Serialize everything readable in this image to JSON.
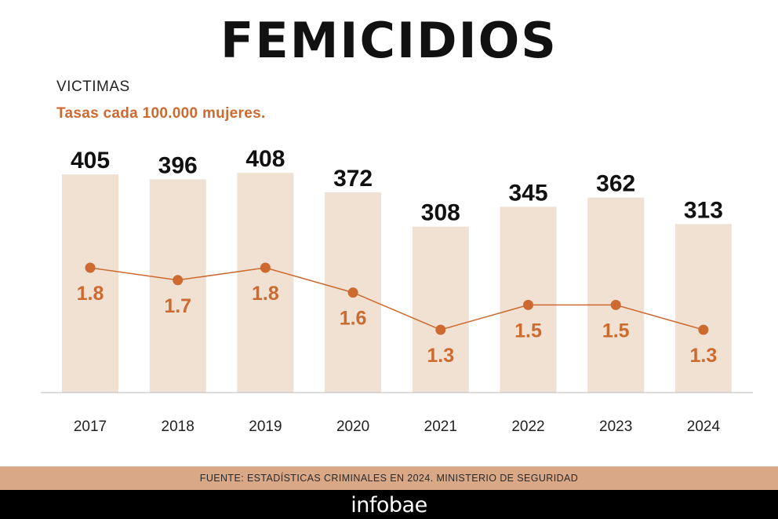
{
  "header": {
    "title": "FEMICIDIOS",
    "subtitle_victims": "VICTIMAS",
    "subtitle_rates": "Tasas cada 100.000 mujeres."
  },
  "chart_data": {
    "type": "bar",
    "categories": [
      "2017",
      "2018",
      "2019",
      "2020",
      "2021",
      "2022",
      "2023",
      "2024"
    ],
    "series": [
      {
        "type": "bar",
        "values": [
          405,
          396,
          408,
          372,
          308,
          345,
          362,
          313
        ]
      },
      {
        "type": "line",
        "values": [
          1.8,
          1.7,
          1.8,
          1.6,
          1.3,
          1.5,
          1.5,
          1.3
        ]
      }
    ],
    "colors": {
      "bar": "#f1e1d2",
      "line": "#cc6a2f",
      "bar_label": "#111111",
      "axis": "#bbbbbb"
    }
  },
  "source": {
    "text": "FUENTE: ESTADÍSTICAS CRIMINALES EN 2024. MINISTERIO DE SEGURIDAD"
  },
  "footer": {
    "brand": "infobae"
  }
}
